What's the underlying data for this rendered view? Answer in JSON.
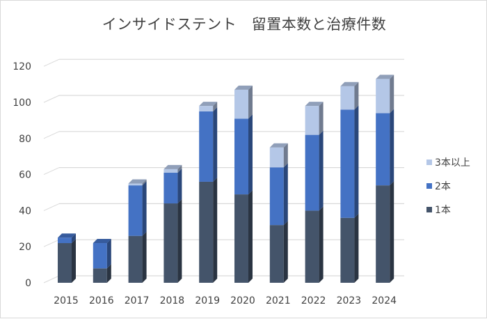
{
  "chart_data": {
    "type": "bar",
    "stacked": true,
    "style": "3d-stacked-column",
    "title": "インサイドステント　留置本数と治療件数",
    "xlabel": "",
    "ylabel": "",
    "ylim": [
      0,
      120
    ],
    "yticks": [
      0,
      20,
      40,
      60,
      80,
      100,
      120
    ],
    "grid": true,
    "legend_position": "right",
    "categories": [
      "2015",
      "2016",
      "2017",
      "2018",
      "2019",
      "2020",
      "2021",
      "2022",
      "2023",
      "2024"
    ],
    "series": [
      {
        "name": "1本",
        "color": "#44546A",
        "values": [
          22,
          8,
          26,
          44,
          56,
          49,
          32,
          40,
          36,
          54
        ]
      },
      {
        "name": "2本",
        "color": "#4472C4",
        "values": [
          3,
          14,
          28,
          17,
          39,
          42,
          32,
          42,
          60,
          40
        ]
      },
      {
        "name": "3本以上",
        "color": "#B4C7E7",
        "values": [
          0,
          0,
          1,
          2,
          3,
          16,
          11,
          16,
          13,
          19
        ]
      }
    ]
  },
  "legend": {
    "items": [
      {
        "label": "3本以上",
        "color": "#B4C7E7"
      },
      {
        "label": "2本",
        "color": "#4472C4"
      },
      {
        "label": "1本",
        "color": "#44546A"
      }
    ]
  }
}
